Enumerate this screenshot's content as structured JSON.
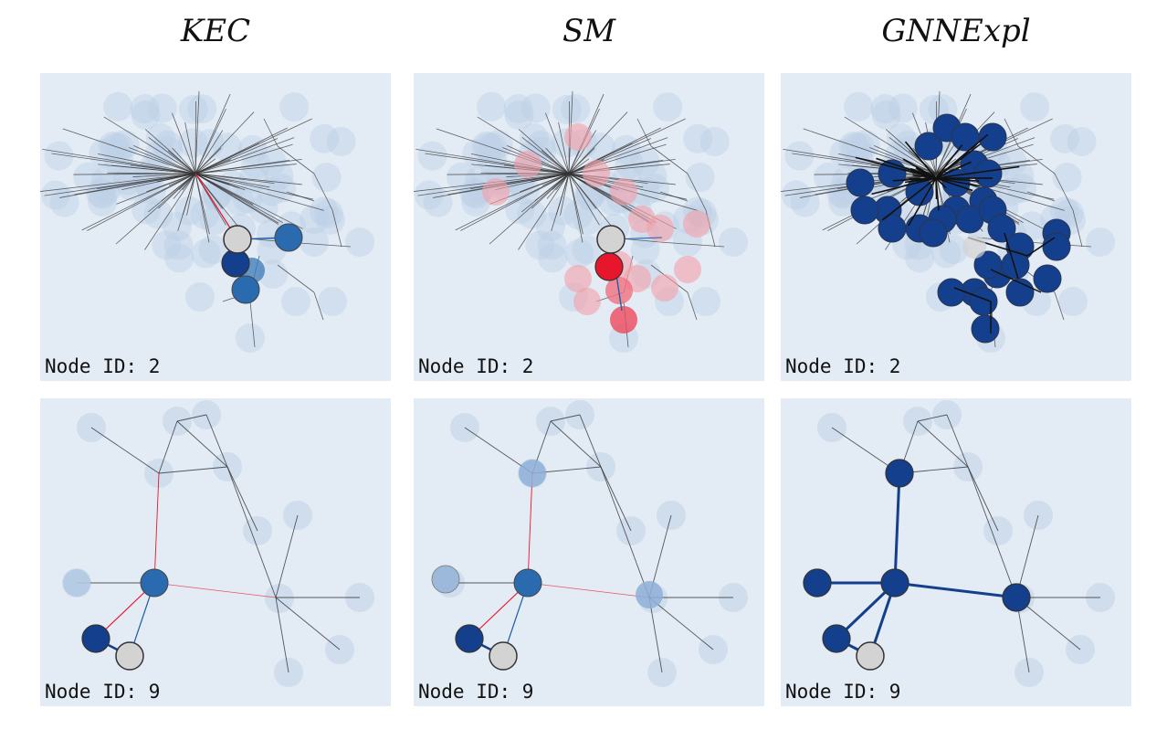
{
  "columns": [
    "KEC",
    "SM",
    "GNNExpl"
  ],
  "node_label_prefix": "Node ID:",
  "rows": [
    {
      "node_id": "2",
      "graph": "dense"
    },
    {
      "node_id": "9",
      "graph": "sparse"
    }
  ],
  "panels": [
    {
      "row": 0,
      "col": 0,
      "method": "KEC",
      "node_label": "Node ID: 2"
    },
    {
      "row": 0,
      "col": 1,
      "method": "SM",
      "node_label": "Node ID: 2"
    },
    {
      "row": 0,
      "col": 2,
      "method": "GNNExpl",
      "node_label": "Node ID: 2"
    },
    {
      "row": 1,
      "col": 0,
      "method": "KEC",
      "node_label": "Node ID: 9"
    },
    {
      "row": 1,
      "col": 1,
      "method": "SM",
      "node_label": "Node ID: 9"
    },
    {
      "row": 1,
      "col": 2,
      "method": "GNNExpl",
      "node_label": "Node ID: 9"
    }
  ],
  "colors": {
    "panel_bg": "#e3ebf4",
    "faint_node": "#bcd0e6",
    "positive_blue": "#1f5fa8",
    "dark_blue": "#143f8c",
    "negative_red": "#e8162c",
    "light_red": "#f4a0a8",
    "target_node": "#d3d3d3",
    "edge_gray": "#333333"
  }
}
